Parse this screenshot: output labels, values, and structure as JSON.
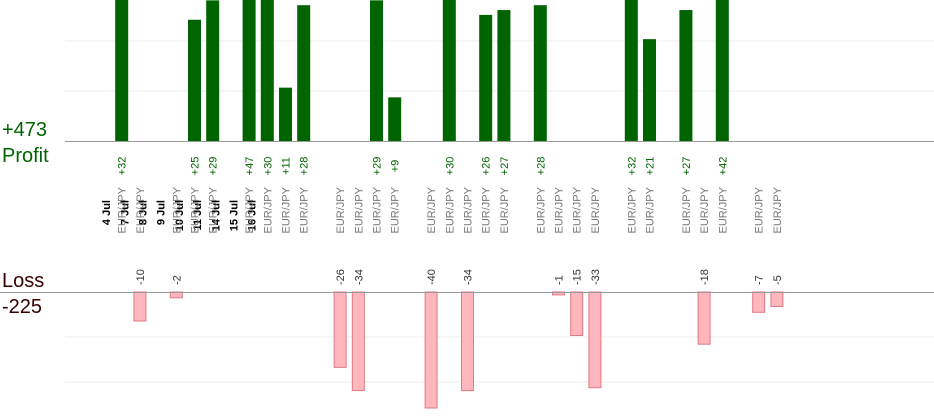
{
  "summary": {
    "profit_total": "+473",
    "profit_label": "Profit",
    "loss_label": "Loss",
    "loss_total": "-225"
  },
  "colors": {
    "profit_bar": "#006400",
    "profit_text": "#006400",
    "loss_bar": "#ffb6bc",
    "loss_bar_stroke": "#e07a84",
    "label_text": "#777777",
    "date_text": "#000000",
    "gridline": "#eeeeee",
    "baseline": "#999999"
  },
  "chart_data": {
    "type": "bar",
    "ylim_profit": [
      0,
      60
    ],
    "ylim_loss": [
      0,
      48
    ],
    "dates": [
      "4 Jul",
      "7 Jul",
      "8 Jul",
      "9 Jul",
      "10 Jul",
      "11 Jul",
      "14 Jul",
      "15 Jul",
      "16 Jul"
    ],
    "trades": [
      {
        "date": "4 Jul",
        "pair": "EUR/JPY",
        "value": 32
      },
      {
        "date": "4 Jul",
        "pair": "EUR/JPY",
        "value": -10
      },
      {
        "date": "7 Jul",
        "pair": "EUR/JPY",
        "value": -2
      },
      {
        "date": "7 Jul",
        "pair": "EUR/JPY",
        "value": 25
      },
      {
        "date": "7 Jul",
        "pair": "EUR/JPY",
        "value": 29
      },
      {
        "date": "8 Jul",
        "pair": "EUR/JPY",
        "value": 47
      },
      {
        "date": "8 Jul",
        "pair": "EUR/JPY",
        "value": 30
      },
      {
        "date": "8 Jul",
        "pair": "EUR/JPY",
        "value": 11
      },
      {
        "date": "8 Jul",
        "pair": "EUR/JPY",
        "value": 28
      },
      {
        "date": "9 Jul",
        "pair": "EUR/JPY",
        "value": -26
      },
      {
        "date": "9 Jul",
        "pair": "EUR/JPY",
        "value": -34
      },
      {
        "date": "9 Jul",
        "pair": "EUR/JPY",
        "value": 29
      },
      {
        "date": "9 Jul",
        "pair": "EUR/JPY",
        "value": 9
      },
      {
        "date": "10 Jul",
        "pair": "EUR/JPY",
        "value": -40
      },
      {
        "date": "10 Jul",
        "pair": "EUR/JPY",
        "value": 30
      },
      {
        "date": "10 Jul",
        "pair": "EUR/JPY",
        "value": -34
      },
      {
        "date": "10 Jul",
        "pair": "EUR/JPY",
        "value": 26
      },
      {
        "date": "10 Jul",
        "pair": "EUR/JPY",
        "value": 27
      },
      {
        "date": "11 Jul",
        "pair": "EUR/JPY",
        "value": 28
      },
      {
        "date": "11 Jul",
        "pair": "EUR/JPY",
        "value": -1
      },
      {
        "date": "11 Jul",
        "pair": "EUR/JPY",
        "value": -15
      },
      {
        "date": "11 Jul",
        "pair": "EUR/JPY",
        "value": -33
      },
      {
        "date": "14 Jul",
        "pair": "EUR/JPY",
        "value": 32
      },
      {
        "date": "14 Jul",
        "pair": "EUR/JPY",
        "value": 21
      },
      {
        "date": "15 Jul",
        "pair": "EUR/JPY",
        "value": 27
      },
      {
        "date": "15 Jul",
        "pair": "EUR/JPY",
        "value": -18
      },
      {
        "date": "15 Jul",
        "pair": "EUR/JPY",
        "value": 42
      },
      {
        "date": "16 Jul",
        "pair": "EUR/JPY",
        "value": -7
      },
      {
        "date": "16 Jul",
        "pair": "EUR/JPY",
        "value": -5
      }
    ]
  }
}
